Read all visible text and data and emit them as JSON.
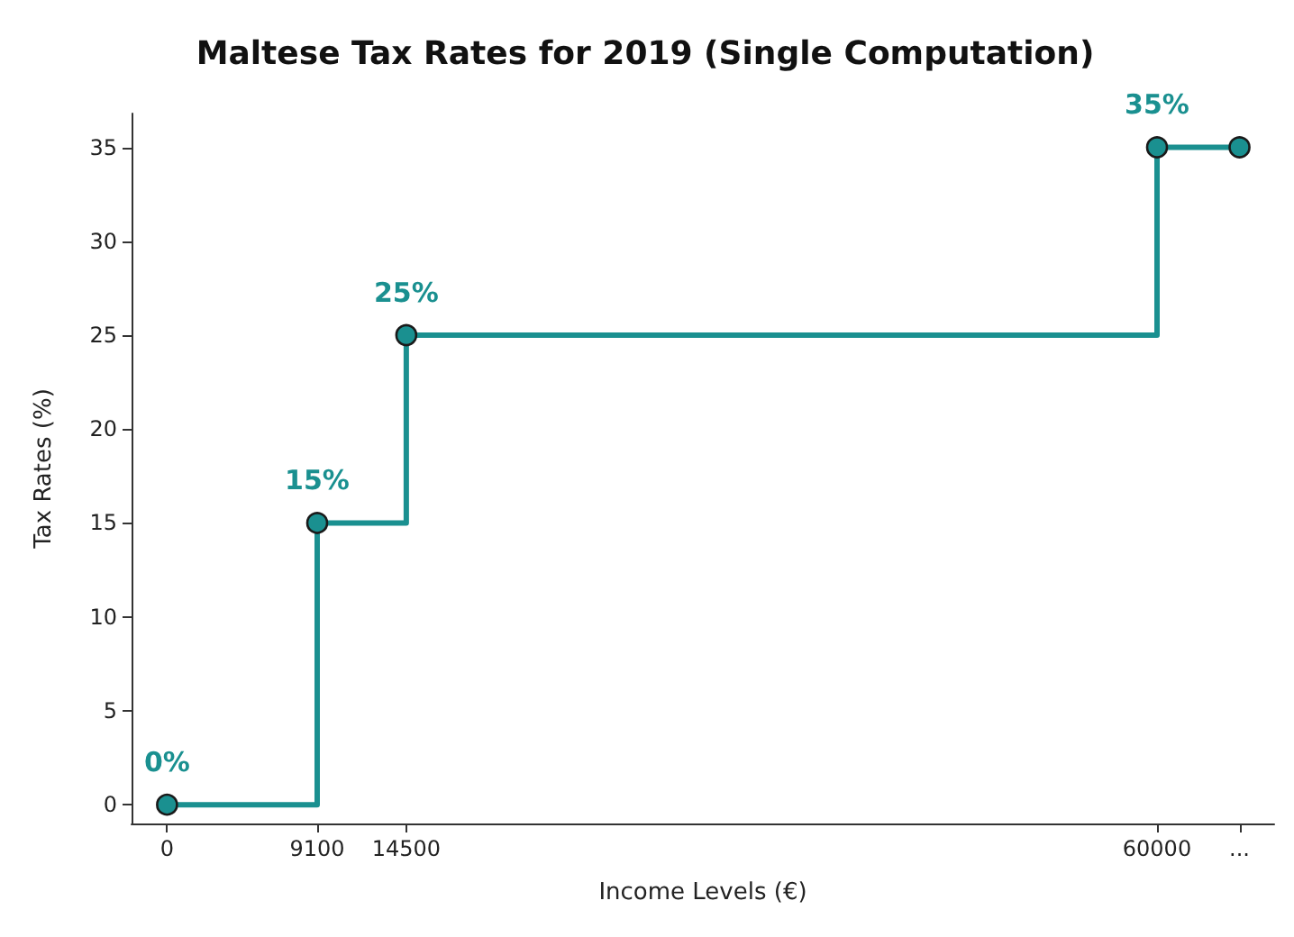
{
  "chart_data": {
    "type": "step",
    "title": "Maltese Tax Rates for 2019 (Single Computation)",
    "xlabel": "Income Levels (€)",
    "ylabel": "Tax Rates (%)",
    "x": [
      0,
      9100,
      14500,
      60000,
      65000
    ],
    "series": [
      {
        "color": "#1a9090",
        "values": [
          0,
          15,
          25,
          35,
          35
        ],
        "value_labels": [
          "0%",
          "15%",
          "25%",
          "35%",
          null
        ]
      }
    ],
    "xlim": [
      -2150,
      67100
    ],
    "ylim": [
      -1,
      36.8
    ],
    "xticks": [
      0,
      9100,
      14500,
      60000,
      {
        "value": 65000,
        "label": "..."
      }
    ],
    "yticks": [
      0,
      5,
      10,
      15,
      20,
      25,
      30,
      35
    ],
    "grid": false,
    "marker": "circle",
    "line_style": "solid"
  }
}
